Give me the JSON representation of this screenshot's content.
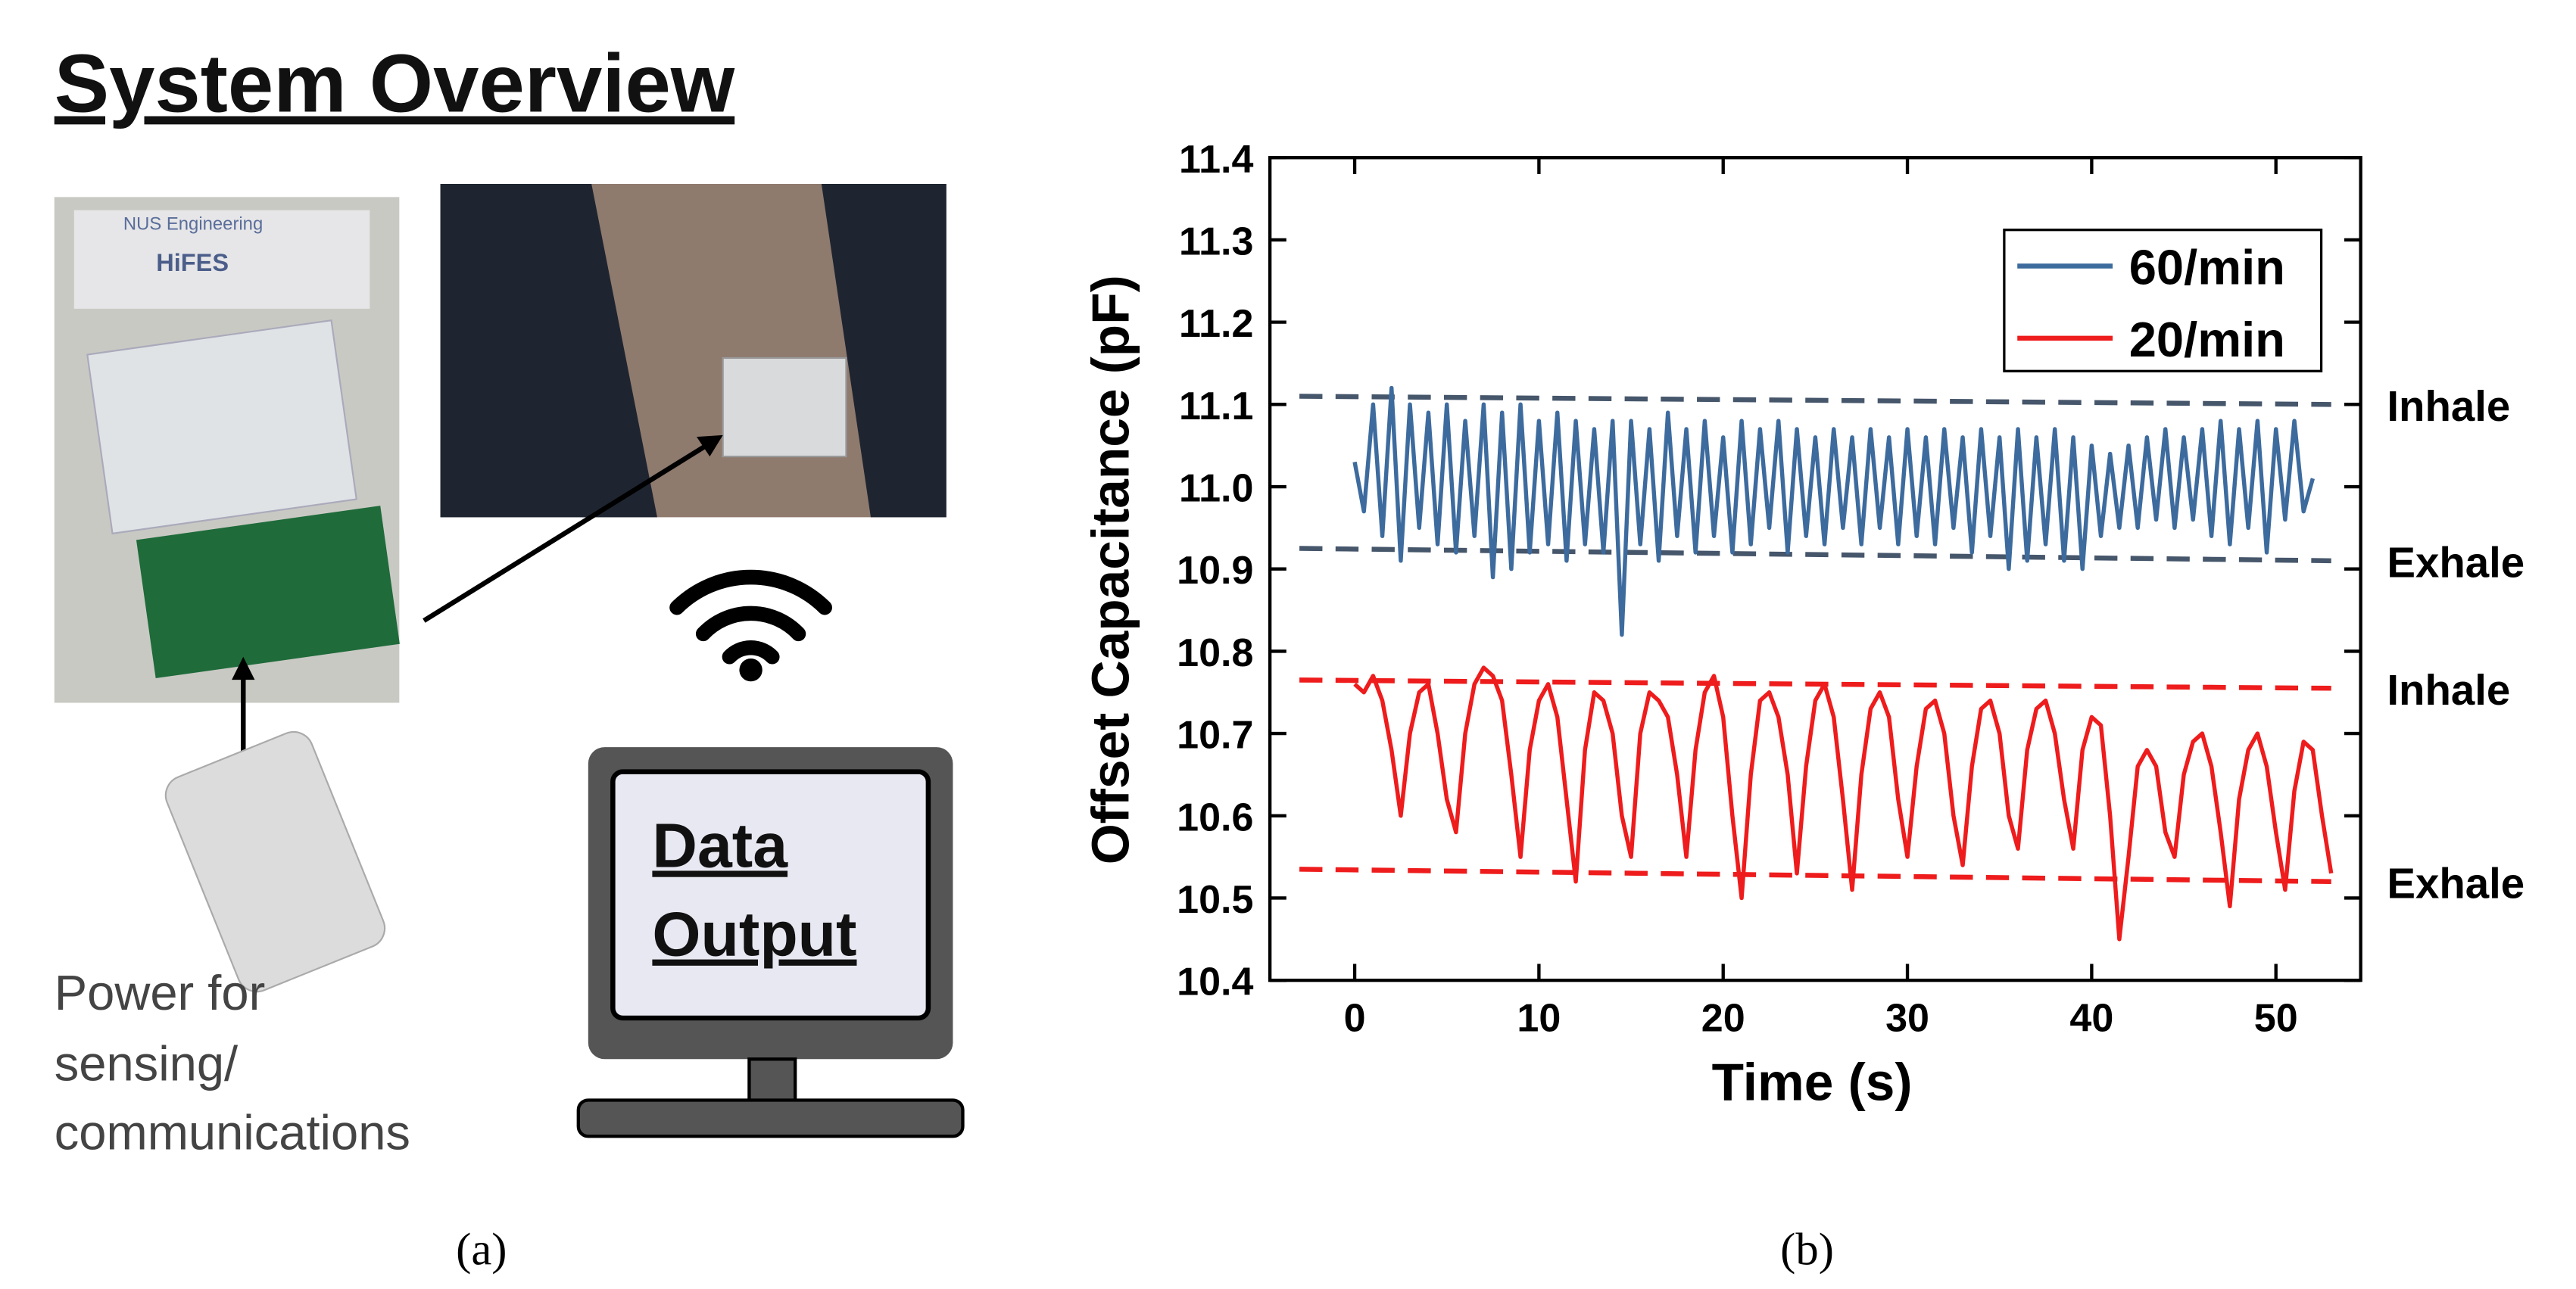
{
  "panel_a": {
    "title": "System Overview",
    "photo_texts": [
      "NUS Engineering",
      "HiFES"
    ],
    "screen_lines": [
      "Data",
      "Output"
    ],
    "power_lines": [
      "Power for",
      "sensing/",
      "communications"
    ],
    "label": "(a)"
  },
  "panel_b_label": "(b)",
  "chart_data": {
    "type": "line",
    "x_label": "Time (s)",
    "y_label": "Offset Capacitance (pF)",
    "xlim": [
      -4.6,
      54.6
    ],
    "ylim": [
      10.4,
      11.4
    ],
    "xticks": [
      0,
      10,
      20,
      30,
      40,
      50
    ],
    "yticks": [
      10.4,
      10.5,
      10.6,
      10.7,
      10.8,
      10.9,
      {
        "value": 11,
        "label": "11.0"
      },
      11.1,
      11.2,
      11.3,
      11.4
    ],
    "legend": "upper right",
    "x": [
      0,
      0.5,
      1,
      1.5,
      2,
      2.5,
      3,
      3.5,
      4,
      4.5,
      5,
      5.5,
      6,
      6.5,
      7,
      7.5,
      8,
      8.5,
      9,
      9.5,
      10,
      10.5,
      11,
      11.5,
      12,
      12.5,
      13,
      13.5,
      14,
      14.5,
      15,
      15.5,
      16,
      16.5,
      17,
      17.5,
      18,
      18.5,
      19,
      19.5,
      20,
      20.5,
      21,
      21.5,
      22,
      22.5,
      23,
      23.5,
      24,
      24.5,
      25,
      25.5,
      26,
      26.5,
      27,
      27.5,
      28,
      28.5,
      29,
      29.5,
      30,
      30.5,
      31,
      31.5,
      32,
      32.5,
      33,
      33.5,
      34,
      34.5,
      35,
      35.5,
      36,
      36.5,
      37,
      37.5,
      38,
      38.5,
      39,
      39.5,
      40,
      40.5,
      41,
      41.5,
      42,
      42.5,
      43,
      43.5,
      44,
      44.5,
      45,
      45.5,
      46,
      46.5,
      47,
      47.5,
      48,
      48.5,
      49,
      49.5,
      50,
      50.5,
      51,
      51.5,
      52,
      52.5,
      53
    ],
    "series": [
      {
        "name": "60/min",
        "color": "#3d6b9e",
        "values": [
          11.03,
          10.97,
          11.1,
          10.94,
          11.12,
          10.91,
          11.1,
          10.95,
          11.09,
          10.93,
          11.1,
          10.92,
          11.08,
          10.94,
          11.1,
          10.89,
          11.09,
          10.9,
          11.1,
          10.92,
          11.08,
          10.93,
          11.09,
          10.91,
          11.08,
          10.93,
          11.07,
          10.92,
          11.08,
          10.82,
          11.08,
          10.93,
          11.07,
          10.91,
          11.09,
          10.94,
          11.07,
          10.92,
          11.08,
          10.94,
          11.06,
          10.92,
          11.08,
          10.93,
          11.07,
          10.95,
          11.08,
          10.92,
          11.07,
          10.94,
          11.06,
          10.93,
          11.07,
          10.95,
          11.06,
          10.93,
          11.07,
          10.95,
          11.06,
          10.93,
          11.07,
          10.94,
          11.06,
          10.93,
          11.07,
          10.95,
          11.06,
          10.92,
          11.07,
          10.94,
          11.06,
          10.9,
          11.07,
          10.91,
          11.06,
          10.93,
          11.07,
          10.91,
          11.06,
          10.9,
          11.05,
          10.94,
          11.04,
          10.95,
          11.05,
          10.95,
          11.06,
          10.96,
          11.07,
          10.95,
          11.06,
          10.96,
          11.07,
          10.94,
          11.08,
          10.93,
          11.07,
          10.95,
          11.08,
          10.92,
          11.07,
          10.96,
          11.08,
          10.97,
          11.01,
          null,
          null
        ]
      },
      {
        "name": "20/min",
        "color": "#ee1c1c",
        "values": [
          10.76,
          10.75,
          10.77,
          10.74,
          10.68,
          10.6,
          10.7,
          10.75,
          10.76,
          10.7,
          10.62,
          10.58,
          10.7,
          10.76,
          10.78,
          10.77,
          10.74,
          10.65,
          10.55,
          10.68,
          10.74,
          10.76,
          10.72,
          10.62,
          10.52,
          10.68,
          10.75,
          10.74,
          10.7,
          10.6,
          10.55,
          10.7,
          10.75,
          10.74,
          10.72,
          10.65,
          10.55,
          10.68,
          10.75,
          10.77,
          10.72,
          10.6,
          10.5,
          10.65,
          10.74,
          10.75,
          10.72,
          10.65,
          10.53,
          10.66,
          10.74,
          10.76,
          10.72,
          10.62,
          10.51,
          10.65,
          10.73,
          10.75,
          10.72,
          10.62,
          10.55,
          10.66,
          10.73,
          10.74,
          10.7,
          10.6,
          10.54,
          10.66,
          10.73,
          10.74,
          10.7,
          10.6,
          10.56,
          10.68,
          10.73,
          10.74,
          10.7,
          10.62,
          10.56,
          10.68,
          10.72,
          10.71,
          10.6,
          10.45,
          10.55,
          10.66,
          10.68,
          10.66,
          10.58,
          10.55,
          10.65,
          10.69,
          10.7,
          10.66,
          10.58,
          10.49,
          10.62,
          10.68,
          10.7,
          10.66,
          10.58,
          10.51,
          10.63,
          10.69,
          10.68,
          10.6,
          10.53
        ]
      }
    ],
    "reference_lines": [
      {
        "label": "Inhale",
        "color": "#46566b",
        "x": [
          -3,
          53
        ],
        "y": [
          11.11,
          11.1
        ]
      },
      {
        "label": "Exhale",
        "color": "#46566b",
        "x": [
          -3,
          53
        ],
        "y": [
          10.925,
          10.91
        ]
      },
      {
        "label": "Inhale",
        "color": "#ee1c1c",
        "x": [
          -3,
          53
        ],
        "y": [
          10.765,
          10.755
        ]
      },
      {
        "label": "Exhale",
        "color": "#ee1c1c",
        "x": [
          -3,
          53
        ],
        "y": [
          10.535,
          10.52
        ]
      }
    ]
  }
}
